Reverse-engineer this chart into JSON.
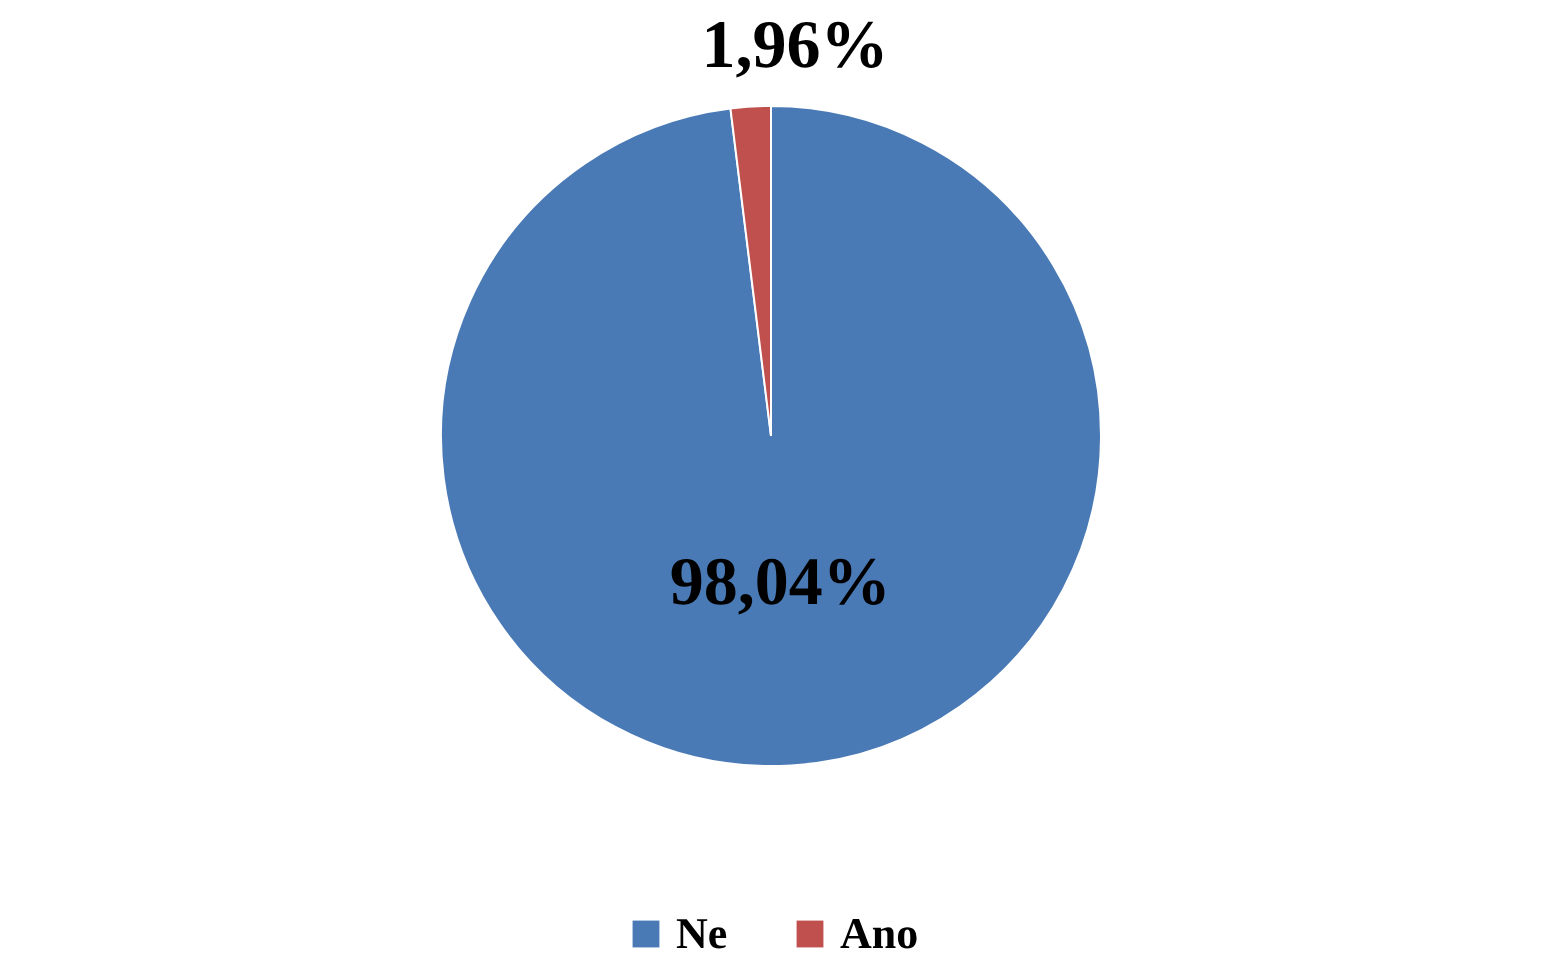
{
  "chart_data": {
    "type": "pie",
    "categories": [
      "Ne",
      "Ano"
    ],
    "values": [
      98.04,
      1.96
    ],
    "colors": [
      "#4a7ab5",
      "#c0504d"
    ],
    "value_labels": [
      "98,04%",
      "1,96%"
    ],
    "legend": "bottom"
  }
}
